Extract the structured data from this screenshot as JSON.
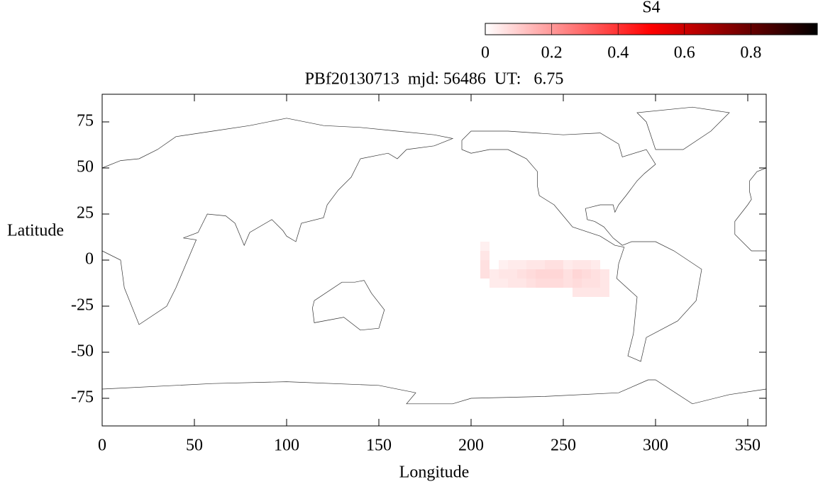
{
  "chart_data": {
    "type": "heatmap",
    "title": "PBf20130713  mjd: 56486  UT:   6.75",
    "xlabel": "Longitude",
    "ylabel": "Latitude",
    "xlim": [
      0,
      360
    ],
    "xticks": [
      0,
      50,
      100,
      150,
      200,
      250,
      300,
      350
    ],
    "ylim": [
      -90,
      90
    ],
    "yticks": [
      -75,
      -50,
      -25,
      0,
      25,
      50,
      75
    ],
    "lon_bins": [
      205,
      210,
      215,
      220,
      225,
      230,
      235,
      240,
      245,
      250,
      255,
      260,
      265,
      270,
      275
    ],
    "lat_bins": [
      -20,
      -15,
      -10,
      -5,
      0,
      5,
      10
    ],
    "values": [
      [
        null,
        null,
        null,
        null,
        null,
        null,
        null,
        null,
        null,
        null,
        0.05,
        0.05,
        0.05,
        0.05
      ],
      [
        null,
        0.04,
        0.04,
        0.05,
        0.05,
        0.06,
        0.07,
        0.07,
        0.07,
        0.06,
        0.07,
        0.06,
        0.06,
        0.05
      ],
      [
        0.06,
        0.04,
        0.05,
        0.05,
        0.06,
        0.07,
        0.08,
        0.08,
        0.08,
        0.06,
        0.08,
        0.07,
        0.06,
        0.05
      ],
      [
        0.06,
        null,
        0.03,
        0.04,
        0.04,
        0.05,
        0.05,
        0.06,
        0.06,
        0.04,
        0.05,
        0.05,
        0.04,
        null
      ],
      [
        0.05,
        null,
        null,
        null,
        null,
        null,
        null,
        null,
        null,
        null,
        null,
        null,
        null,
        null
      ],
      [
        0.03,
        null,
        null,
        null,
        null,
        null,
        null,
        null,
        null,
        null,
        null,
        null,
        null,
        null
      ]
    ],
    "colorbar": {
      "label": "S4",
      "lim": [
        0,
        1
      ],
      "ticks": [
        0,
        0.2,
        0.4,
        0.6,
        0.8
      ],
      "colormap": [
        "#ffffff",
        "#ff0000",
        "#000000"
      ]
    }
  }
}
